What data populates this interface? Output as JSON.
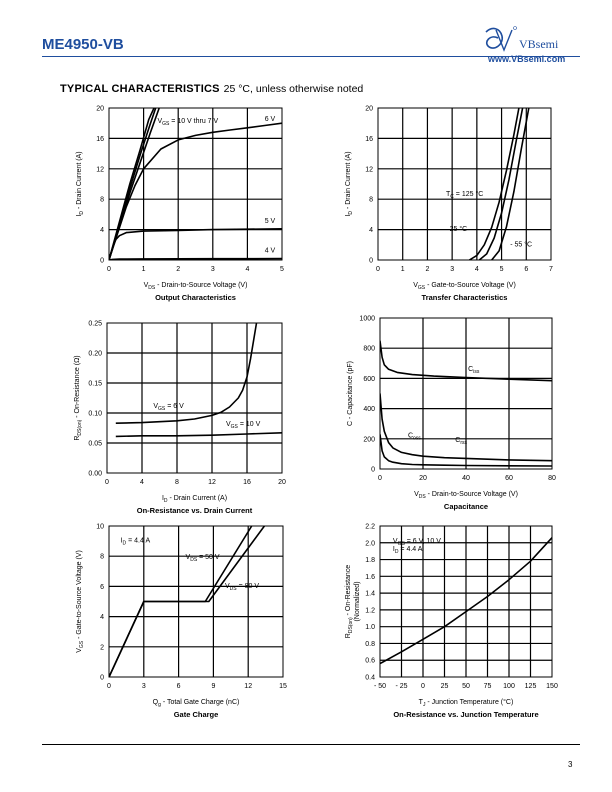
{
  "header": {
    "part_number": "ME4950-VB",
    "brand": "VBsemi",
    "website": "www.VBsemi.com",
    "logo_icon": "vbsemi-logo-icon",
    "brand_color": "#1f4e9e"
  },
  "section": {
    "title": "TYPICAL CHARACTERISTICS",
    "condition": "25 °C, unless otherwise noted"
  },
  "page_number": "3",
  "chart_data": [
    {
      "type": "line",
      "title": "Output Characteristics",
      "xlabel_pre": "V",
      "xlabel_sub": "DS",
      "xlabel_post": " - Drain-to-Source Voltage (V)",
      "ylabel_pre": "I",
      "ylabel_sub": "D",
      "ylabel_post": " - Drain Current (A)",
      "xlim": [
        0,
        5
      ],
      "ylim": [
        0,
        20
      ],
      "xticks": [
        "0",
        "1",
        "2",
        "3",
        "4",
        "5"
      ],
      "xtick_values": [
        0,
        1,
        2,
        3,
        4,
        5
      ],
      "yticks": [
        "0",
        "4",
        "8",
        "12",
        "16",
        "20"
      ],
      "ytick_values": [
        0,
        4,
        8,
        12,
        16,
        20
      ],
      "grid": true,
      "series": [
        {
          "name": "V_GS = 10 V thru 7 V (a)",
          "x": [
            0,
            0.3,
            0.6,
            0.9,
            1.15,
            1.3
          ],
          "y": [
            0,
            5,
            10,
            14.5,
            18.5,
            20
          ]
        },
        {
          "name": "V_GS = 10 V thru 7 V (b)",
          "x": [
            0,
            0.3,
            0.6,
            0.9,
            1.2,
            1.35
          ],
          "y": [
            0,
            4.7,
            9.4,
            13.8,
            18,
            20
          ]
        },
        {
          "name": "V_GS = 10 V thru 7 V (c)",
          "x": [
            0,
            0.3,
            0.6,
            0.9,
            1.2,
            1.45
          ],
          "y": [
            0,
            4.4,
            8.8,
            12.8,
            16.8,
            20
          ]
        },
        {
          "name": "6 V",
          "x": [
            0,
            0.25,
            0.5,
            0.75,
            1,
            1.5,
            2,
            2.5,
            3,
            3.5,
            4,
            4.5,
            5
          ],
          "y": [
            0,
            3.5,
            7,
            9.8,
            12,
            14.6,
            15.8,
            16.4,
            16.8,
            17.1,
            17.4,
            17.7,
            18
          ]
        },
        {
          "name": "5 V",
          "x": [
            0,
            0.1,
            0.2,
            0.3,
            0.5,
            1,
            2,
            3,
            4,
            5
          ],
          "y": [
            0,
            1.6,
            2.7,
            3.2,
            3.6,
            3.8,
            3.9,
            4,
            4.05,
            4.1
          ]
        },
        {
          "name": "4 V",
          "x": [
            0,
            0.1,
            0.3,
            1,
            2,
            3,
            4,
            5
          ],
          "y": [
            0,
            0.08,
            0.12,
            0.15,
            0.16,
            0.17,
            0.17,
            0.18
          ]
        }
      ],
      "annotations": [
        {
          "pre": "V",
          "sub": "GS",
          "post": " = 10 V thru 7 V",
          "x": 1.4,
          "y": 18
        },
        {
          "pre": "6 V",
          "sub": "",
          "post": "",
          "x": 4.5,
          "y": 18.3
        },
        {
          "pre": "5 V",
          "sub": "",
          "post": "",
          "x": 4.5,
          "y": 4.9
        },
        {
          "pre": "4 V",
          "sub": "",
          "post": "",
          "x": 4.5,
          "y": 1.0
        }
      ]
    },
    {
      "type": "line",
      "title": "Transfer Characteristics",
      "xlabel_pre": "V",
      "xlabel_sub": "GS",
      "xlabel_post": " - Gate-to-Source Voltage (V)",
      "ylabel_pre": "I",
      "ylabel_sub": "D",
      "ylabel_post": " - Drain Current (A)",
      "xlim": [
        0,
        7
      ],
      "ylim": [
        0,
        20
      ],
      "xticks": [
        "0",
        "1",
        "2",
        "3",
        "4",
        "5",
        "6",
        "7"
      ],
      "xtick_values": [
        0,
        1,
        2,
        3,
        4,
        5,
        6,
        7
      ],
      "yticks": [
        "0",
        "4",
        "8",
        "12",
        "16",
        "20"
      ],
      "ytick_values": [
        0,
        4,
        8,
        12,
        16,
        20
      ],
      "grid": true,
      "series": [
        {
          "name": "T_C = 125 °C",
          "x": [
            3.7,
            4,
            4.3,
            4.6,
            4.9,
            5.2,
            5.5,
            5.7
          ],
          "y": [
            0,
            0.6,
            2,
            4.3,
            7.6,
            11.8,
            16.5,
            20
          ]
        },
        {
          "name": "25 °C",
          "x": [
            4.1,
            4.4,
            4.7,
            5,
            5.3,
            5.6,
            5.85
          ],
          "y": [
            0,
            0.8,
            2.9,
            6.2,
            10.6,
            15.8,
            20
          ]
        },
        {
          "name": "- 55 °C",
          "x": [
            4.6,
            4.9,
            5.2,
            5.5,
            5.8,
            6.1
          ],
          "y": [
            0,
            1.2,
            4.4,
            9,
            14.6,
            20
          ]
        }
      ],
      "annotations": [
        {
          "pre": "T",
          "sub": "C",
          "post": " = 125 °C",
          "x": 2.75,
          "y": 8.4
        },
        {
          "pre": "25 °C",
          "sub": "",
          "post": "",
          "x": 2.9,
          "y": 3.8
        },
        {
          "pre": "- 55 °C",
          "sub": "",
          "post": "",
          "x": 5.35,
          "y": 1.8
        }
      ]
    },
    {
      "type": "line",
      "title": "On-Resistance vs. Drain Current",
      "xlabel_pre": "I",
      "xlabel_sub": "D",
      "xlabel_post": " - Drain Current (A)",
      "ylabel_pre": "R",
      "ylabel_sub": "DS(on)",
      "ylabel_post": " - On-Resistance (Ω)",
      "xlim": [
        0,
        20
      ],
      "ylim": [
        0,
        0.25
      ],
      "xticks": [
        "0",
        "4",
        "8",
        "12",
        "16",
        "20"
      ],
      "xtick_values": [
        0,
        4,
        8,
        12,
        16,
        20
      ],
      "yticks": [
        "0.00",
        "0.05",
        "0.10",
        "0.15",
        "0.20",
        "0.25"
      ],
      "ytick_values": [
        0,
        0.05,
        0.1,
        0.15,
        0.2,
        0.25
      ],
      "grid": true,
      "series": [
        {
          "name": "V_GS = 6 V",
          "x": [
            1,
            4,
            8,
            10,
            12,
            13,
            14,
            15,
            15.5,
            16,
            16.4,
            16.8,
            17.2
          ],
          "y": [
            0.083,
            0.084,
            0.087,
            0.09,
            0.096,
            0.101,
            0.11,
            0.125,
            0.138,
            0.16,
            0.19,
            0.225,
            0.26
          ]
        },
        {
          "name": "V_GS = 10 V",
          "x": [
            1,
            4,
            8,
            12,
            16,
            20
          ],
          "y": [
            0.061,
            0.062,
            0.062,
            0.063,
            0.065,
            0.067
          ]
        }
      ],
      "annotations": [
        {
          "pre": "V",
          "sub": "GS",
          "post": " = 6 V",
          "x": 5.3,
          "y": 0.108
        },
        {
          "pre": "V",
          "sub": "GS",
          "post": " = 10 V",
          "x": 13.6,
          "y": 0.078
        }
      ]
    },
    {
      "type": "line",
      "title": "Capacitance",
      "xlabel_pre": "V",
      "xlabel_sub": "DS",
      "xlabel_post": " - Drain-to-Source Voltage (V)",
      "ylabel_pre": "C",
      "ylabel_sub": "",
      "ylabel_post": " - Capacitance (pF)",
      "xlim": [
        0,
        80
      ],
      "ylim": [
        0,
        1000
      ],
      "xticks": [
        "0",
        "20",
        "40",
        "60",
        "80"
      ],
      "xtick_values": [
        0,
        20,
        40,
        60,
        80
      ],
      "yticks": [
        "0",
        "200",
        "400",
        "600",
        "800",
        "1000"
      ],
      "ytick_values": [
        0,
        200,
        400,
        600,
        800,
        1000
      ],
      "grid": true,
      "series": [
        {
          "name": "C_iss",
          "x": [
            0,
            1,
            2,
            4,
            8,
            15,
            25,
            40,
            60,
            80
          ],
          "y": [
            850,
            740,
            690,
            660,
            640,
            625,
            615,
            605,
            595,
            585
          ]
        },
        {
          "name": "C_oss",
          "x": [
            0,
            1,
            2,
            4,
            6,
            10,
            15,
            20,
            30,
            40,
            60,
            80
          ],
          "y": [
            500,
            330,
            250,
            175,
            140,
            110,
            95,
            85,
            75,
            70,
            60,
            55
          ]
        },
        {
          "name": "C_rss",
          "x": [
            0,
            1,
            2,
            4,
            6,
            10,
            15,
            20,
            30,
            40,
            60,
            80
          ],
          "y": [
            230,
            120,
            80,
            55,
            45,
            35,
            30,
            28,
            25,
            23,
            21,
            20
          ]
        }
      ],
      "annotations": [
        {
          "pre": "C",
          "sub": "iss",
          "post": "",
          "x": 41,
          "y": 650
        },
        {
          "pre": "C",
          "sub": "oss",
          "post": "",
          "x": 13,
          "y": 210
        },
        {
          "pre": "C",
          "sub": "rss",
          "post": "",
          "x": 35,
          "y": 180
        }
      ]
    },
    {
      "type": "line",
      "title": "Gate Charge",
      "xlabel_pre": "Q",
      "xlabel_sub": "g",
      "xlabel_post": " - Total Gate Charge (nC)",
      "ylabel_pre": "V",
      "ylabel_sub": "GS",
      "ylabel_post": " - Gate-to-Source Voltage (V)",
      "xlim": [
        0,
        15
      ],
      "ylim": [
        0,
        10
      ],
      "xticks": [
        "0",
        "3",
        "6",
        "9",
        "12",
        "15"
      ],
      "xtick_values": [
        0,
        3,
        6,
        9,
        12,
        15
      ],
      "yticks": [
        "0",
        "2",
        "4",
        "6",
        "8",
        "10"
      ],
      "ytick_values": [
        0,
        2,
        4,
        6,
        8,
        10
      ],
      "grid": true,
      "series": [
        {
          "name": "V_DS = 50 V",
          "x": [
            0,
            3,
            8.3,
            12.3
          ],
          "y": [
            0,
            5,
            5,
            10
          ]
        },
        {
          "name": "V_DS = 80 V",
          "x": [
            0,
            3,
            8.6,
            13.4
          ],
          "y": [
            0,
            5,
            5,
            10
          ]
        }
      ],
      "annotations": [
        {
          "pre": "I",
          "sub": "D",
          "post": " = 4.4 A",
          "x": 1.0,
          "y": 8.9
        },
        {
          "pre": "V",
          "sub": "DS",
          "post": " = 50 V",
          "x": 6.6,
          "y": 7.8
        },
        {
          "pre": "V",
          "sub": "DS",
          "post": " = 80 V",
          "x": 10.0,
          "y": 5.9
        }
      ]
    },
    {
      "type": "line",
      "title": "On-Resistance vs. Junction Temperature",
      "xlabel_pre": "T",
      "xlabel_sub": "J",
      "xlabel_post": " - Junction Temperature (°C)",
      "ylabel_pre": "R",
      "ylabel_sub": "DS(on)",
      "ylabel_post": " - On-Resistance",
      "ylabel_line2": "(Normalized)",
      "xlim": [
        -50,
        150
      ],
      "ylim": [
        0.4,
        2.2
      ],
      "xticks": [
        "- 50",
        "- 25",
        "0",
        "25",
        "50",
        "75",
        "100",
        "125",
        "150"
      ],
      "xtick_values": [
        -50,
        -25,
        0,
        25,
        50,
        75,
        100,
        125,
        150
      ],
      "yticks": [
        "0.4",
        "0.6",
        "0.8",
        "1.0",
        "1.2",
        "1.4",
        "1.6",
        "1.8",
        "2.0",
        "2.2"
      ],
      "ytick_values": [
        0.4,
        0.6,
        0.8,
        1.0,
        1.2,
        1.4,
        1.6,
        1.8,
        2.0,
        2.2
      ],
      "grid": true,
      "series": [
        {
          "name": "R_DS(on)",
          "x": [
            -50,
            -25,
            0,
            25,
            50,
            75,
            100,
            125,
            150
          ],
          "y": [
            0.56,
            0.7,
            0.85,
            1.0,
            1.18,
            1.36,
            1.56,
            1.78,
            2.06
          ]
        }
      ],
      "annotations": [
        {
          "pre": "V",
          "sub": "GS",
          "post": " = 6 V, 10 V",
          "x": -35,
          "y": 2.0
        },
        {
          "pre": "I",
          "sub": "D",
          "post": " = 4.4 A",
          "x": -35,
          "y": 1.9
        }
      ]
    }
  ]
}
